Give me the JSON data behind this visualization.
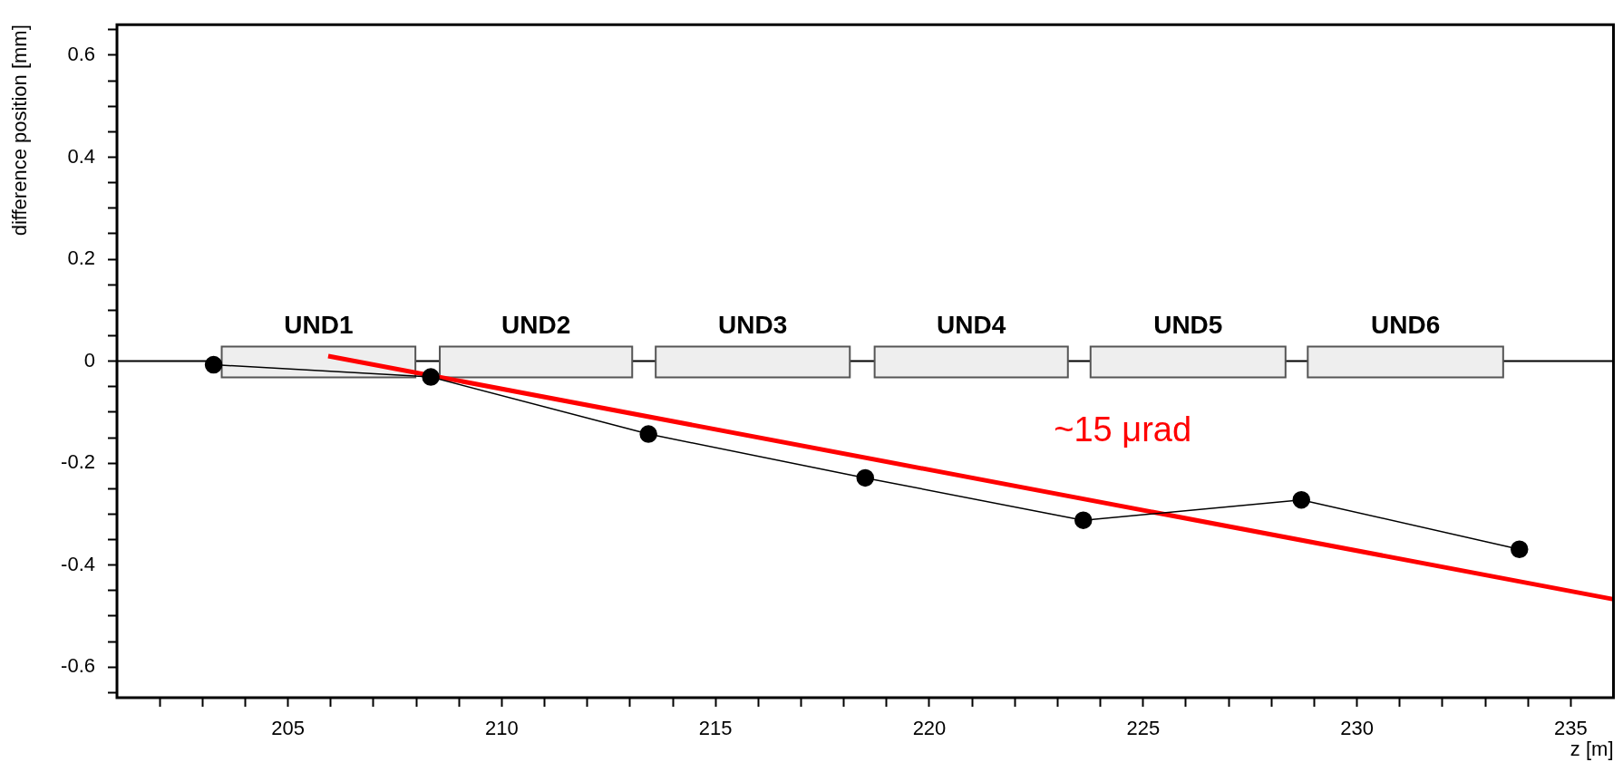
{
  "chart_data": {
    "type": "line",
    "xlabel": "z [m]",
    "ylabel": "difference position [mm]",
    "xlim": [
      201,
      236
    ],
    "xticks": [
      {
        "value": 202,
        "label": null
      },
      {
        "value": 203,
        "label": null
      },
      {
        "value": 204,
        "label": null
      },
      205,
      {
        "value": 206,
        "label": null
      },
      {
        "value": 207,
        "label": null
      },
      {
        "value": 208,
        "label": null
      },
      {
        "value": 209,
        "label": null
      },
      210,
      {
        "value": 211,
        "label": null
      },
      {
        "value": 212,
        "label": null
      },
      {
        "value": 213,
        "label": null
      },
      {
        "value": 214,
        "label": null
      },
      215,
      {
        "value": 216,
        "label": null
      },
      {
        "value": 217,
        "label": null
      },
      {
        "value": 218,
        "label": null
      },
      {
        "value": 219,
        "label": null
      },
      220,
      {
        "value": 221,
        "label": null
      },
      {
        "value": 222,
        "label": null
      },
      {
        "value": 223,
        "label": null
      },
      {
        "value": 224,
        "label": null
      },
      225,
      {
        "value": 226,
        "label": null
      },
      {
        "value": 227,
        "label": null
      },
      {
        "value": 228,
        "label": null
      },
      {
        "value": 229,
        "label": null
      },
      230,
      {
        "value": 231,
        "label": null
      },
      {
        "value": 232,
        "label": null
      },
      {
        "value": 233,
        "label": null
      },
      {
        "value": 234,
        "label": null
      },
      235
    ],
    "ylim": [
      -0.66,
      0.66
    ],
    "yticks": [
      {
        "value": -0.65,
        "label": null
      },
      -0.6,
      {
        "value": -0.55,
        "label": null
      },
      {
        "value": -0.5,
        "label": null
      },
      {
        "value": -0.45,
        "label": null
      },
      -0.4,
      {
        "value": -0.35,
        "label": null
      },
      {
        "value": -0.3,
        "label": null
      },
      {
        "value": -0.25,
        "label": null
      },
      -0.2,
      {
        "value": -0.15,
        "label": null
      },
      {
        "value": -0.1,
        "label": null
      },
      {
        "value": -0.05,
        "label": null
      },
      0,
      {
        "value": 0.05,
        "label": null
      },
      {
        "value": 0.1,
        "label": null
      },
      {
        "value": 0.15,
        "label": null
      },
      0.2,
      {
        "value": 0.25,
        "label": null
      },
      {
        "value": 0.3,
        "label": null
      },
      {
        "value": 0.35,
        "label": null
      },
      0.4,
      {
        "value": 0.45,
        "label": null
      },
      {
        "value": 0.5,
        "label": null
      },
      {
        "value": 0.55,
        "label": null
      },
      0.6,
      {
        "value": 0.65,
        "label": null
      }
    ],
    "series": [
      {
        "color": "#000000",
        "marker": "circle",
        "x": [
          203.26,
          208.34,
          213.43,
          218.5,
          223.6,
          228.7,
          233.8
        ],
        "values": [
          -0.007,
          -0.031,
          -0.143,
          -0.229,
          -0.312,
          -0.272,
          -0.369
        ]
      },
      {
        "color": "#ff0000",
        "marker": "none",
        "x": [
          205.94,
          236
        ],
        "values": [
          0.01,
          -0.467
        ]
      }
    ],
    "ref_lines": [
      {
        "axis": "y",
        "value": 0,
        "color": "#000000"
      }
    ],
    "bands": [
      {
        "axis": "x",
        "from": 203.45,
        "to": 207.98,
        "label": "UND1"
      },
      {
        "axis": "x",
        "from": 208.55,
        "to": 213.05,
        "label": "UND2"
      },
      {
        "axis": "x",
        "from": 213.6,
        "to": 218.14,
        "label": "UND3"
      },
      {
        "axis": "x",
        "from": 218.72,
        "to": 223.24,
        "label": "UND4"
      },
      {
        "axis": "x",
        "from": 223.77,
        "to": 228.33,
        "label": "UND5"
      },
      {
        "axis": "x",
        "from": 228.85,
        "to": 233.42,
        "label": "UND6"
      }
    ],
    "annotations": [
      "~15 μrad"
    ]
  }
}
